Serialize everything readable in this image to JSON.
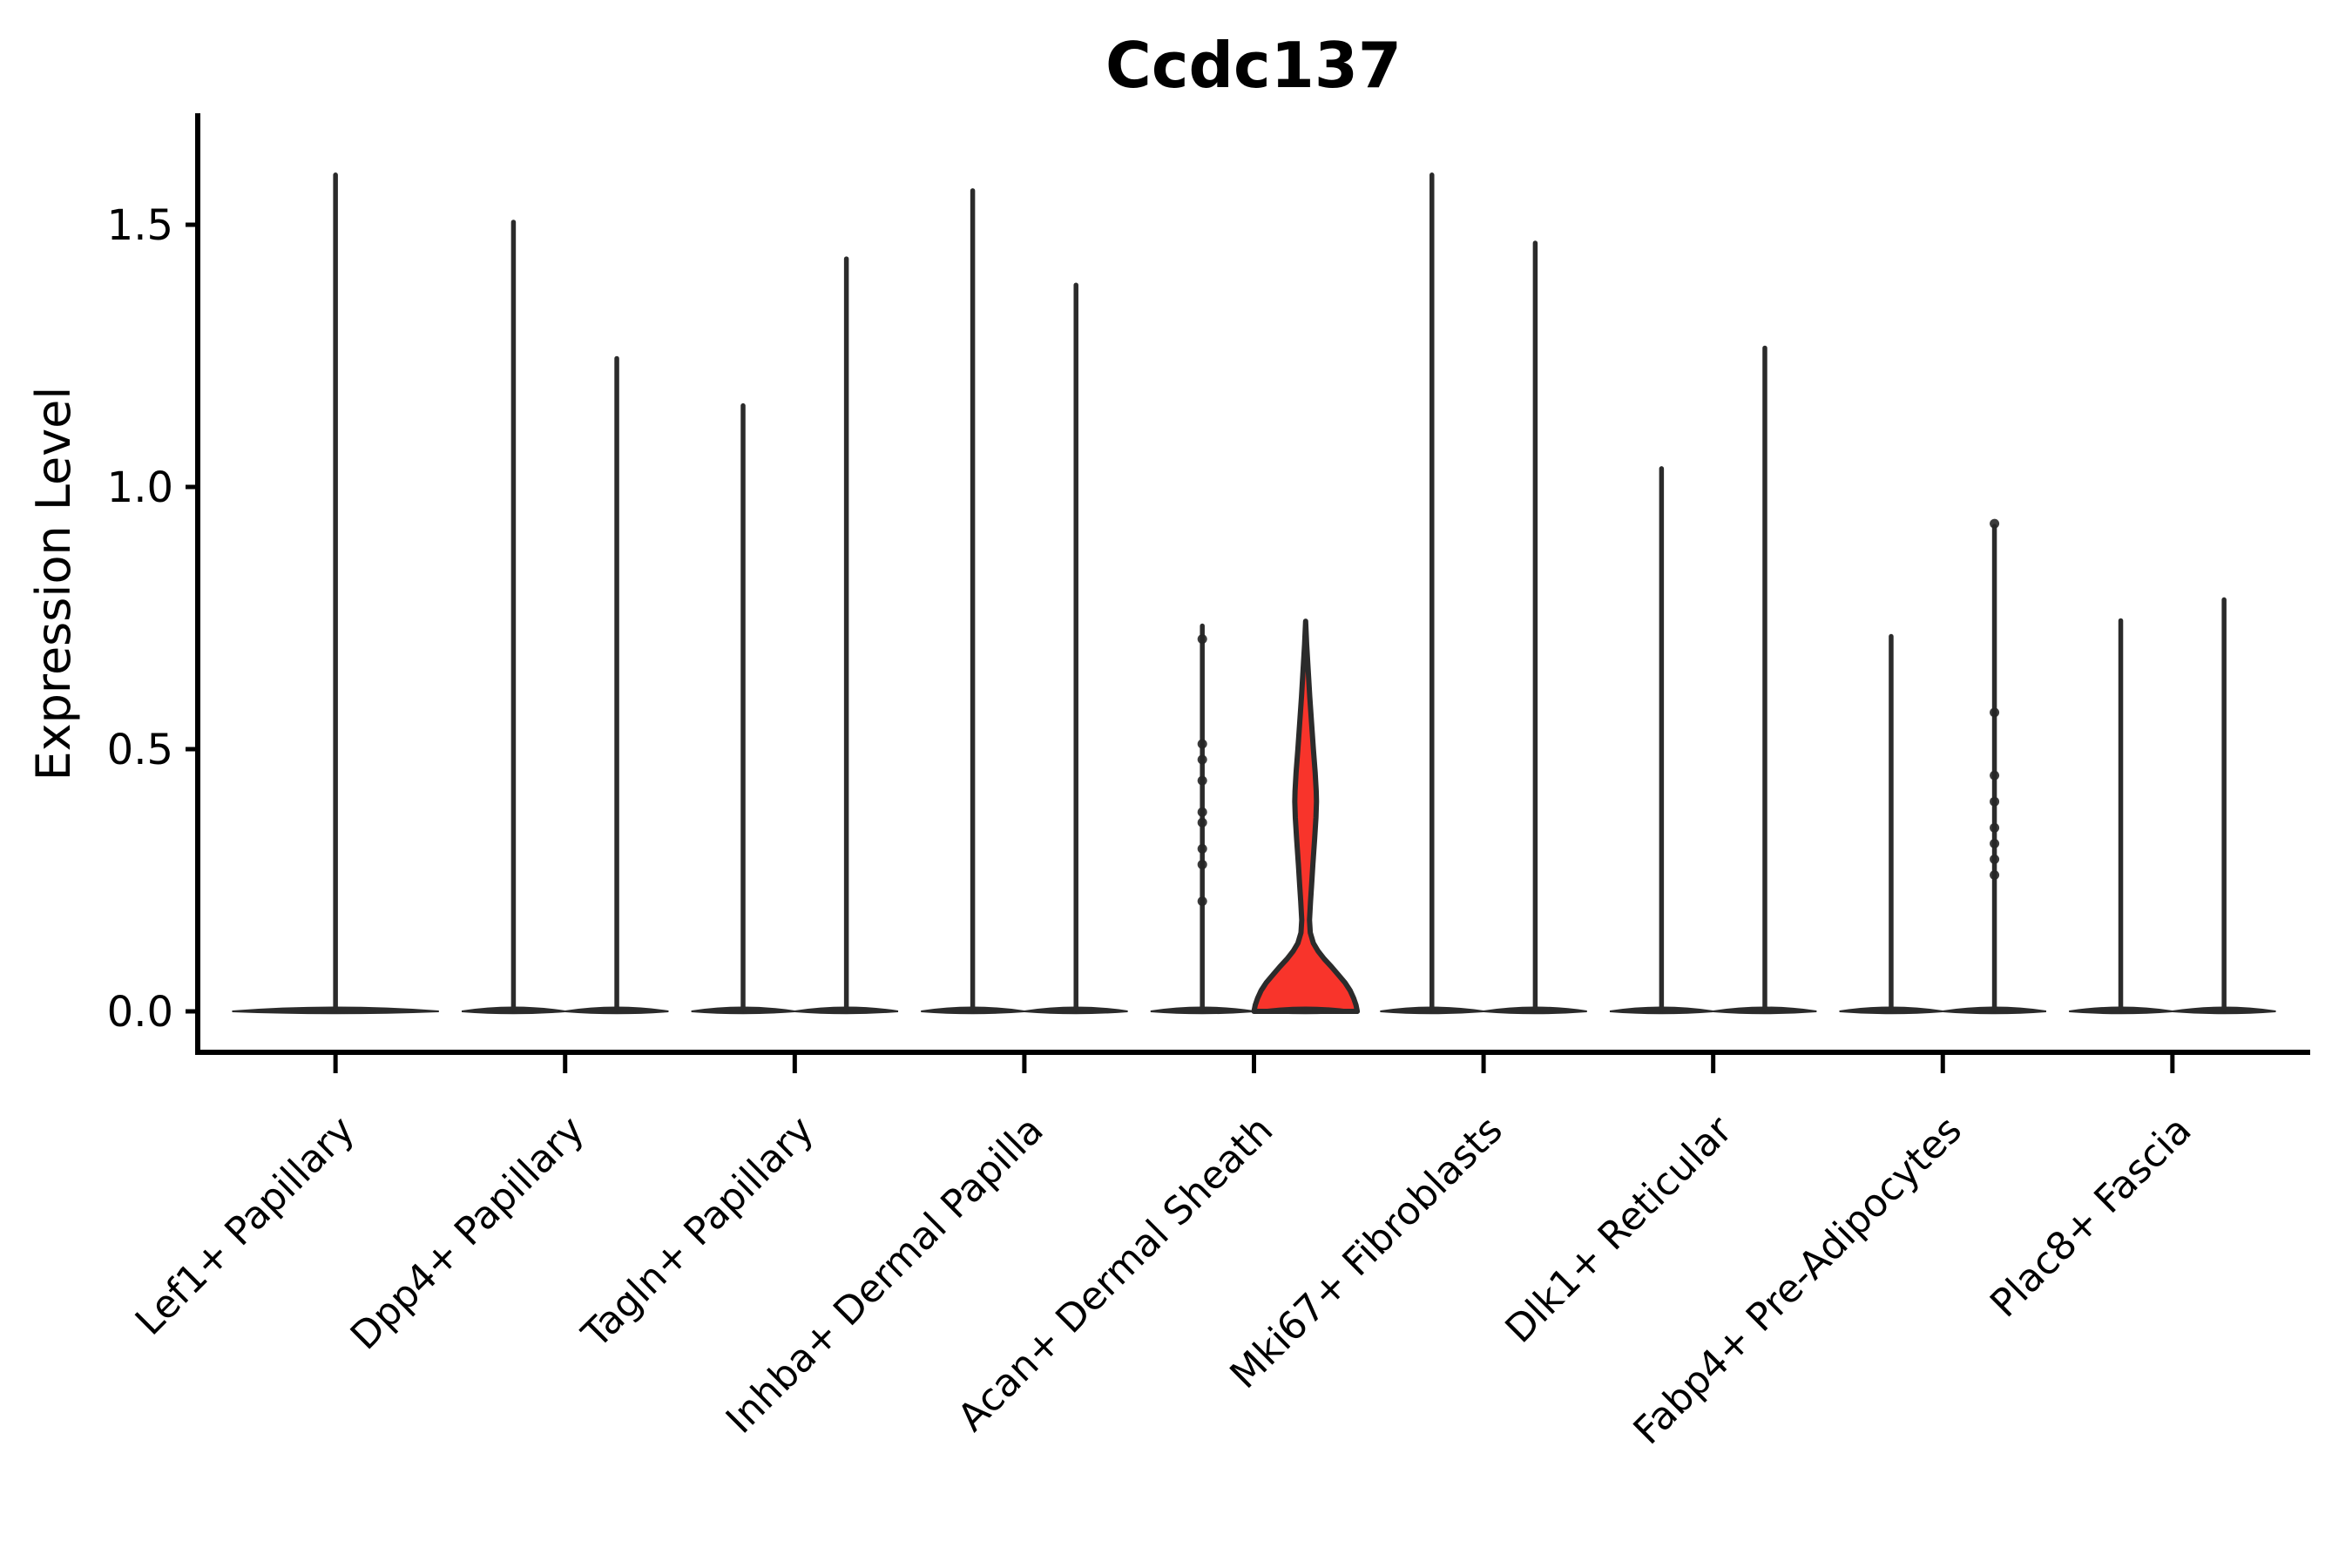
{
  "chart_data": {
    "type": "violin",
    "title": "Ccdc137",
    "ylabel": "Expression Level",
    "xlabel": "",
    "legend": "none",
    "grid": false,
    "background_color": "#ffffff",
    "colors": {
      "violin_outline": "#2b2b2b",
      "violin_base_fill": "#2b2b2b",
      "highlight_fill": "#f8342b",
      "axis_color": "#000000",
      "text_color": "#000000",
      "jitter_dot_color": "#262626"
    },
    "ylim": [
      0,
      1.71
    ],
    "yticks": [
      {
        "value": 1.5,
        "label": "1.5"
      },
      {
        "value": 1.0,
        "label": "1.0"
      },
      {
        "value": 0.5,
        "label": "0.5"
      },
      {
        "value": 0.0,
        "label": "0.0"
      }
    ],
    "categories": [
      "Lef1+ Papillary",
      "Dpp4+ Papillary",
      "Tagln+ Papillary",
      "Inhba+ Dermal Papilla",
      "Acan+ Dermal Sheath",
      "Mki67+ Fibroblasts",
      "Dlk1+ Reticular",
      "Fabp4+ Pre-Adipocytes",
      "Plac8+ Fascia"
    ],
    "violins": [
      {
        "category_index": 0,
        "position": "center",
        "max_expression": 1.6,
        "highlight": false,
        "dots": []
      },
      {
        "category_index": 1,
        "position": "left",
        "max_expression": 1.51,
        "highlight": false,
        "dots": []
      },
      {
        "category_index": 1,
        "position": "right",
        "max_expression": 1.25,
        "highlight": false,
        "dots": []
      },
      {
        "category_index": 2,
        "position": "left",
        "max_expression": 1.16,
        "highlight": false,
        "dots": []
      },
      {
        "category_index": 2,
        "position": "right",
        "max_expression": 1.44,
        "highlight": false,
        "dots": []
      },
      {
        "category_index": 3,
        "position": "left",
        "max_expression": 1.57,
        "highlight": false,
        "dots": []
      },
      {
        "category_index": 3,
        "position": "right",
        "max_expression": 1.39,
        "highlight": false,
        "dots": []
      },
      {
        "category_index": 4,
        "position": "left",
        "max_expression": 0.74,
        "highlight": false,
        "dots": [
          0.71,
          0.51,
          0.48,
          0.44,
          0.38,
          0.36,
          0.31,
          0.28,
          0.21
        ]
      },
      {
        "category_index": 4,
        "position": "right",
        "max_expression": 0.74,
        "highlight": true,
        "dots": []
      },
      {
        "category_index": 5,
        "position": "left",
        "max_expression": 1.6,
        "highlight": false,
        "dots": []
      },
      {
        "category_index": 5,
        "position": "right",
        "max_expression": 1.47,
        "highlight": false,
        "dots": []
      },
      {
        "category_index": 6,
        "position": "left",
        "max_expression": 1.04,
        "highlight": false,
        "dots": []
      },
      {
        "category_index": 6,
        "position": "right",
        "max_expression": 1.27,
        "highlight": false,
        "dots": []
      },
      {
        "category_index": 7,
        "position": "left",
        "max_expression": 0.72,
        "highlight": false,
        "dots": []
      },
      {
        "category_index": 7,
        "position": "right",
        "max_expression": 0.93,
        "highlight": false,
        "dots": [
          0.93,
          0.57,
          0.45,
          0.4,
          0.35,
          0.32,
          0.29,
          0.26
        ]
      },
      {
        "category_index": 8,
        "position": "left",
        "max_expression": 0.75,
        "highlight": false,
        "dots": []
      },
      {
        "category_index": 8,
        "position": "right",
        "max_expression": 0.79,
        "highlight": false,
        "dots": []
      }
    ],
    "highlight_profile": [
      [
        0.744,
        0.0
      ],
      [
        0.7,
        0.02
      ],
      [
        0.65,
        0.05
      ],
      [
        0.6,
        0.08
      ],
      [
        0.55,
        0.115
      ],
      [
        0.5,
        0.15
      ],
      [
        0.455,
        0.185
      ],
      [
        0.42,
        0.205
      ],
      [
        0.4,
        0.21
      ],
      [
        0.37,
        0.2
      ],
      [
        0.33,
        0.175
      ],
      [
        0.28,
        0.14
      ],
      [
        0.24,
        0.115
      ],
      [
        0.21,
        0.095
      ],
      [
        0.174,
        0.075
      ],
      [
        0.15,
        0.09
      ],
      [
        0.13,
        0.15
      ],
      [
        0.115,
        0.24
      ],
      [
        0.1,
        0.36
      ],
      [
        0.085,
        0.5
      ],
      [
        0.07,
        0.63
      ],
      [
        0.055,
        0.76
      ],
      [
        0.04,
        0.86
      ],
      [
        0.025,
        0.93
      ],
      [
        0.012,
        0.975
      ],
      [
        0.0,
        1.0
      ]
    ]
  }
}
